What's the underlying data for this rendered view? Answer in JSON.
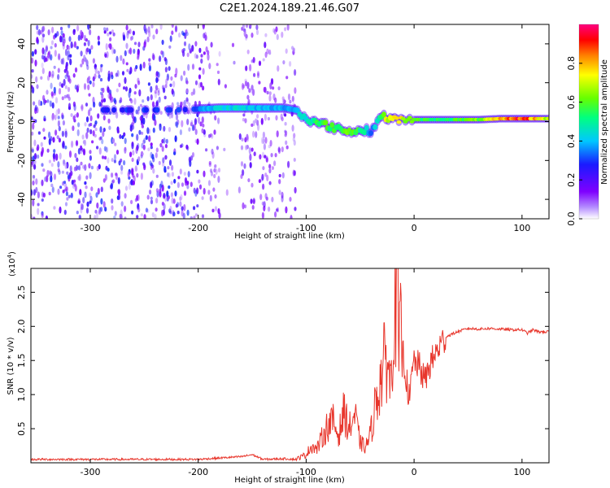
{
  "title": "C2E1.2024.189.21.46.G07",
  "colors": {
    "series": "#e8362c",
    "spectrum_base": "#7f00ff"
  },
  "chart_data": [
    {
      "type": "heatmap",
      "xlabel": "Height of straight line (km)",
      "ylabel": "Frequency (Hz)",
      "xlim": [
        -355,
        125
      ],
      "ylim": [
        -50,
        50
      ],
      "x_ticks": [
        "-300",
        "-200",
        "-100",
        "0",
        "100"
      ],
      "y_ticks": [
        "40",
        "20",
        "0",
        "-20",
        "-40"
      ],
      "colorbar": {
        "label": "Normalized spectral amplitude",
        "range": [
          0,
          1
        ],
        "ticks": [
          "0.0",
          "0.2",
          "0.4",
          "0.6",
          "0.8"
        ],
        "colormap": "rainbow: purple-blue-cyan-green-yellow-orange-red-magenta"
      },
      "dominant_frequency_track": {
        "x": [
          -290,
          -250,
          -220,
          -200,
          -180,
          -160,
          -140,
          -120,
          -110,
          -100,
          -90,
          -80,
          -70,
          -60,
          -50,
          -45,
          -40,
          -30,
          -25,
          -20,
          0,
          20,
          40,
          60,
          80,
          90,
          100,
          110,
          125
        ],
        "y": [
          6,
          6,
          6,
          6.5,
          7,
          7,
          7,
          7,
          6,
          2,
          -1,
          -2,
          -4,
          -5,
          -5,
          -4,
          -5,
          3,
          2,
          1,
          1,
          1,
          1,
          1,
          1.5,
          1.5,
          1.5,
          1.5,
          1.5
        ],
        "amplitude": [
          0.3,
          0.3,
          0.3,
          0.35,
          0.45,
          0.45,
          0.4,
          0.4,
          0.4,
          0.5,
          0.55,
          0.6,
          0.6,
          0.65,
          0.55,
          0.5,
          0.35,
          0.6,
          0.75,
          0.85,
          0.6,
          0.55,
          0.6,
          0.65,
          0.8,
          0.9,
          0.95,
          0.85,
          0.7
        ]
      }
    },
    {
      "type": "line",
      "xlabel": "Height of straight line (km)",
      "ylabel": "SNR (10 * v/v)",
      "y_scale_label": "(x10",
      "y_scale_exp": "4",
      "y_scale_close": ")",
      "xlim": [
        -355,
        125
      ],
      "ylim": [
        0,
        2.85
      ],
      "x_ticks": [
        "-300",
        "-200",
        "-100",
        "0",
        "100"
      ],
      "y_ticks": [
        "2.5",
        "2.0",
        "1.5",
        "1.0",
        "0.5"
      ],
      "series": [
        {
          "x": [
            -355,
            -300,
            -250,
            -200,
            -180,
            -160,
            -150,
            -140,
            -120,
            -110,
            -100,
            -95,
            -90,
            -85,
            -80,
            -75,
            -70,
            -65,
            -60,
            -55,
            -50,
            -45,
            -40,
            -35,
            -30,
            -25,
            -22,
            -20,
            -18,
            -16,
            -15,
            -14,
            -12,
            -10,
            -8,
            -6,
            -4,
            -2,
            0,
            5,
            10,
            15,
            20,
            25,
            30,
            40,
            50,
            60,
            70,
            80,
            90,
            100,
            105,
            110,
            115,
            125
          ],
          "y": [
            0.05,
            0.05,
            0.05,
            0.05,
            0.07,
            0.09,
            0.12,
            0.05,
            0.06,
            0.05,
            0.12,
            0.25,
            0.2,
            0.38,
            0.55,
            0.6,
            0.4,
            0.75,
            0.5,
            0.7,
            0.3,
            0.22,
            0.45,
            0.95,
            1.3,
            1.6,
            1.1,
            1.9,
            2.2,
            2.75,
            2.3,
            1.5,
            2.0,
            1.6,
            1.3,
            1.1,
            0.9,
            1.3,
            1.5,
            1.4,
            1.2,
            1.45,
            1.6,
            1.75,
            1.85,
            1.92,
            1.97,
            1.96,
            1.97,
            1.96,
            1.95,
            1.95,
            1.9,
            1.95,
            1.92,
            1.92
          ]
        }
      ]
    }
  ]
}
